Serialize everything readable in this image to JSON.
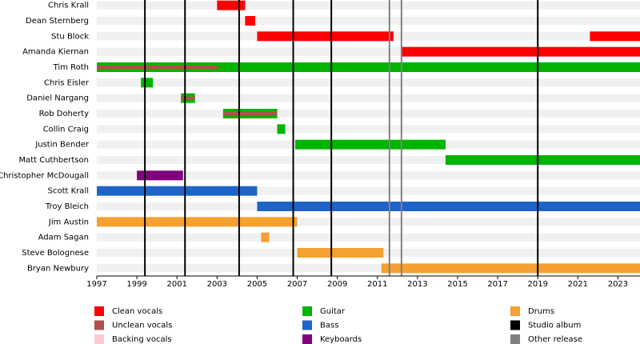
{
  "chart_data": {
    "type": "timeline",
    "members": [
      "Chris Krall",
      "Dean Sternberg",
      "Stu Block",
      "Amanda Kiernan",
      "Tim Roth",
      "Chris Eisler",
      "Daniel Nargang",
      "Rob Doherty",
      "Collin Craig",
      "Justin Bender",
      "Matt Cuthbertson",
      "Christopher McDougall",
      "Scott Krall",
      "Troy Bleich",
      "Jim Austin",
      "Adam Sagan",
      "Steve Bolognese",
      "Bryan Newbury"
    ],
    "roles": [
      {
        "name": "Clean vocals",
        "color": "#ff0000"
      },
      {
        "name": "Unclean vocals",
        "color": "#b05050"
      },
      {
        "name": "Backing vocals",
        "color": "#ffc8d2"
      },
      {
        "name": "Guitar",
        "color": "#00b400"
      },
      {
        "name": "Bass",
        "color": "#1e64c8"
      },
      {
        "name": "Keyboards",
        "color": "#800080"
      },
      {
        "name": "Drums",
        "color": "#f5a030"
      },
      {
        "name": "Studio album",
        "color": "#000000"
      },
      {
        "name": "Other release",
        "color": "#808080"
      }
    ],
    "spans": [
      {
        "member": 0,
        "role": 0,
        "start": 2003.0,
        "end": 2004.4
      },
      {
        "member": 1,
        "role": 0,
        "start": 2004.4,
        "end": 2004.9
      },
      {
        "member": 2,
        "role": 0,
        "start": 2005.0,
        "end": 2011.8
      },
      {
        "member": 2,
        "role": 0,
        "start": 2021.6,
        "end": 2024.1
      },
      {
        "member": 3,
        "role": 0,
        "start": 2012.2,
        "end": 2024.1
      },
      {
        "member": 4,
        "role": 3,
        "start": 1997,
        "end": 2024.1
      },
      {
        "member": 4,
        "role": 1,
        "start": 1997,
        "end": 2003.0
      },
      {
        "member": 5,
        "role": 3,
        "start": 1999.2,
        "end": 1999.8
      },
      {
        "member": 6,
        "role": 3,
        "start": 2001.2,
        "end": 2001.9
      },
      {
        "member": 6,
        "role": 1,
        "start": 2001.2,
        "end": 2001.9
      },
      {
        "member": 7,
        "role": 3,
        "start": 2003.3,
        "end": 2006.0
      },
      {
        "member": 7,
        "role": 1,
        "start": 2003.3,
        "end": 2006.0
      },
      {
        "member": 8,
        "role": 3,
        "start": 2006.0,
        "end": 2006.4
      },
      {
        "member": 9,
        "role": 3,
        "start": 2006.9,
        "end": 2014.4
      },
      {
        "member": 10,
        "role": 3,
        "start": 2014.4,
        "end": 2024.1
      },
      {
        "member": 11,
        "role": 5,
        "start": 1999.0,
        "end": 2001.3
      },
      {
        "member": 12,
        "role": 4,
        "start": 1997,
        "end": 2005.0
      },
      {
        "member": 13,
        "role": 4,
        "start": 2005.0,
        "end": 2024.1
      },
      {
        "member": 14,
        "role": 6,
        "start": 1997,
        "end": 2007.0
      },
      {
        "member": 15,
        "role": 6,
        "start": 2005.2,
        "end": 2005.6
      },
      {
        "member": 16,
        "role": 6,
        "start": 2007.0,
        "end": 2011.3
      },
      {
        "member": 17,
        "role": 6,
        "start": 2011.2,
        "end": 2024.1
      }
    ],
    "events": [
      {
        "role": 7,
        "year": 1999.4
      },
      {
        "role": 7,
        "year": 2001.4
      },
      {
        "role": 7,
        "year": 2004.1
      },
      {
        "role": 7,
        "year": 2006.8
      },
      {
        "role": 7,
        "year": 2008.7
      },
      {
        "role": 7,
        "year": 2019.0
      },
      {
        "role": 8,
        "year": 2011.6
      },
      {
        "role": 8,
        "year": 2012.2
      }
    ],
    "xlim": [
      1997,
      2024.1
    ],
    "xticks": [
      1997,
      1999,
      2001,
      2003,
      2005,
      2007,
      2009,
      2011,
      2013,
      2015,
      2017,
      2019,
      2021,
      2023
    ]
  }
}
